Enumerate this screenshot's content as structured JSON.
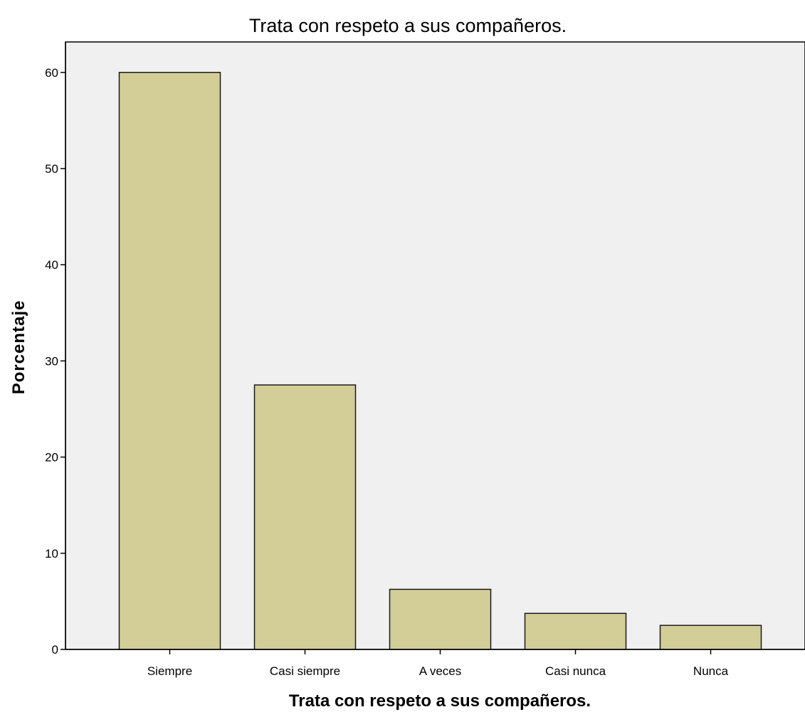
{
  "chart_data": {
    "type": "bar",
    "title": "Trata con respeto a sus compañeros.",
    "xlabel": "Trata con respeto a sus compañeros.",
    "ylabel": "Porcentaje",
    "categories": [
      "Siempre",
      "Casi siempre",
      "A veces",
      "Casi nunca",
      "Nunca"
    ],
    "values": [
      60.0,
      27.5,
      6.25,
      3.75,
      2.5
    ],
    "ylim": [
      0,
      63.3
    ],
    "yticks": [
      0,
      10,
      20,
      30,
      40,
      50,
      60
    ],
    "grid": false,
    "legend": "none",
    "colors": {
      "bar_fill": "#d3ce98",
      "bar_stroke": "#1a1a1a",
      "plot_background": "#f0f0f0",
      "axis": "#000000"
    }
  }
}
